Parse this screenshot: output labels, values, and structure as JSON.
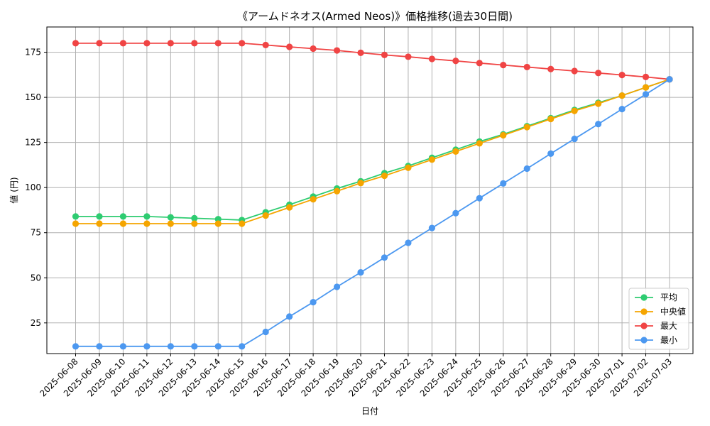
{
  "chart_data": {
    "type": "line",
    "title": "《アームドネオス(Armed Neos)》価格推移(過去30日間)",
    "xlabel": "日付",
    "ylabel": "値 (円)",
    "ylim": [
      8,
      189
    ],
    "yticks": [
      25,
      50,
      75,
      100,
      125,
      150,
      175
    ],
    "grid": true,
    "legend_position": "bottom-right",
    "categories": [
      "2025-06-08",
      "2025-06-09",
      "2025-06-10",
      "2025-06-11",
      "2025-06-12",
      "2025-06-13",
      "2025-06-14",
      "2025-06-15",
      "2025-06-16",
      "2025-06-17",
      "2025-06-18",
      "2025-06-19",
      "2025-06-20",
      "2025-06-21",
      "2025-06-22",
      "2025-06-23",
      "2025-06-24",
      "2025-06-25",
      "2025-06-26",
      "2025-06-27",
      "2025-06-28",
      "2025-06-29",
      "2025-06-30",
      "2025-07-01",
      "2025-07-02",
      "2025-07-03"
    ],
    "series": [
      {
        "name": "平均",
        "color": "#2ecc71",
        "values": [
          84,
          84,
          84,
          84,
          83.5,
          83,
          82.5,
          82,
          86.3,
          90.5,
          95,
          99.5,
          103.5,
          108,
          112,
          116.5,
          121,
          125.5,
          129.5,
          134,
          138.5,
          143,
          147,
          151,
          155.5,
          160
        ]
      },
      {
        "name": "中央値",
        "color": "#f5a500",
        "values": [
          80,
          80,
          80,
          80,
          80,
          80,
          80,
          80,
          84.5,
          89,
          93.5,
          98,
          102.5,
          106.5,
          111,
          115.5,
          120,
          124.5,
          129,
          133.5,
          138,
          142.5,
          146.5,
          151,
          155.5,
          160
        ]
      },
      {
        "name": "最大",
        "color": "#f04444",
        "values": [
          180,
          180,
          180,
          180,
          180,
          180,
          180,
          180,
          179,
          178,
          177,
          176,
          174.7,
          173.5,
          172.5,
          171.3,
          170.2,
          169,
          167.9,
          166.8,
          165.7,
          164.6,
          163.5,
          162.4,
          161.3,
          160
        ]
      },
      {
        "name": "最小",
        "color": "#4c98f0",
        "values": [
          12,
          12,
          12,
          12,
          12,
          12,
          12,
          12,
          20,
          28.5,
          36.5,
          45,
          53,
          61.2,
          69.4,
          77.6,
          85.8,
          94.1,
          102.3,
          110.5,
          118.8,
          127,
          135.2,
          143.5,
          151.7,
          160
        ]
      }
    ]
  }
}
